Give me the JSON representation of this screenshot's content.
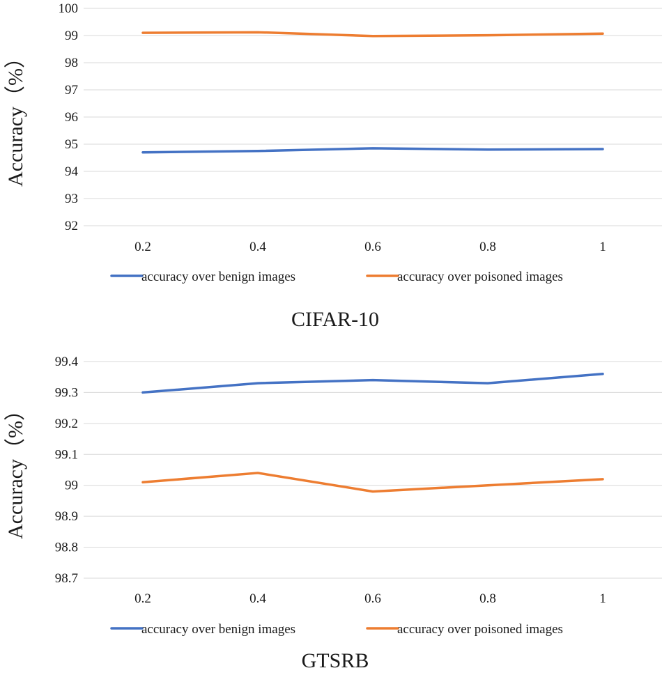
{
  "chart_data": [
    {
      "type": "line",
      "title": "CIFAR-10",
      "xlabel": "",
      "ylabel": "Accuracy（%）",
      "categories": [
        "0.2",
        "0.4",
        "0.6",
        "0.8",
        "1"
      ],
      "ylim": [
        92,
        100
      ],
      "yticks": [
        "92",
        "93",
        "94",
        "95",
        "96",
        "97",
        "98",
        "99",
        "100"
      ],
      "grid": true,
      "legend_position": "bottom",
      "series": [
        {
          "name": "accuracy over benign images",
          "color": "#4472C4",
          "values": [
            94.7,
            94.75,
            94.85,
            94.8,
            94.82
          ]
        },
        {
          "name": "accuracy over poisoned images",
          "color": "#ED7D31",
          "values": [
            99.1,
            99.12,
            98.98,
            99.01,
            99.07
          ]
        }
      ]
    },
    {
      "type": "line",
      "title": "GTSRB",
      "xlabel": "",
      "ylabel": "Accuracy（%）",
      "categories": [
        "0.2",
        "0.4",
        "0.6",
        "0.8",
        "1"
      ],
      "ylim": [
        98.7,
        99.4
      ],
      "yticks": [
        "98.7",
        "98.8",
        "98.9",
        "99",
        "99.1",
        "99.2",
        "99.3",
        "99.4"
      ],
      "grid": true,
      "legend_position": "bottom",
      "series": [
        {
          "name": "accuracy over benign images",
          "color": "#4472C4",
          "values": [
            99.3,
            99.33,
            99.34,
            99.33,
            99.36
          ]
        },
        {
          "name": "accuracy over poisoned images",
          "color": "#ED7D31",
          "values": [
            99.01,
            99.04,
            98.98,
            99.0,
            99.02
          ]
        }
      ]
    }
  ]
}
